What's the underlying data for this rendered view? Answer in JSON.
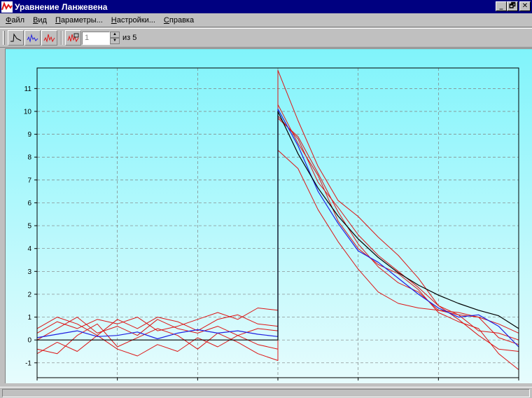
{
  "window": {
    "title": "Уравнение Ланжевена",
    "controls": {
      "minimize": "_",
      "restore": "🗗",
      "close": "✕"
    }
  },
  "menu": {
    "items": [
      {
        "label": "Файл",
        "accel": "Ф",
        "rest": "айл"
      },
      {
        "label": "Вид",
        "accel": "В",
        "rest": "ид"
      },
      {
        "label": "Параметры...",
        "accel": "П",
        "rest": "араметры..."
      },
      {
        "label": "Настройки...",
        "accel": "Н",
        "rest": "астройки..."
      },
      {
        "label": "Справка",
        "accel": "С",
        "rest": "правка"
      }
    ]
  },
  "toolbar": {
    "buttons": [
      {
        "name": "mean-curve",
        "icon": "black-curve-icon"
      },
      {
        "name": "averaged-trajectory",
        "icon": "blue-trajectory-icon"
      },
      {
        "name": "single-trajectory",
        "icon": "red-trajectory-icon"
      },
      {
        "name": "selected-trajectory",
        "icon": "red-trajectory-select-icon"
      }
    ],
    "trial_value": "1",
    "of_label": "из 5"
  },
  "colors": {
    "bg_top": "#80f4fb",
    "bg_bottom": "#e7fcfd",
    "mean": "#000000",
    "average": "#2020e0",
    "trajectory": "#dd1515",
    "grid": "#808080"
  },
  "chart_data": {
    "type": "line",
    "xlim": [
      -3,
      3
    ],
    "ylim": [
      -1.65,
      11.9
    ],
    "x_ticks": [
      -3,
      -2,
      -1,
      0,
      1,
      2,
      3
    ],
    "y_ticks": [
      -1,
      0,
      1,
      2,
      3,
      4,
      5,
      6,
      7,
      8,
      9,
      10,
      11
    ],
    "grid": true,
    "series": [
      {
        "role": "mean",
        "color": "#000000",
        "points": [
          [
            -3,
            0
          ],
          [
            0,
            0
          ],
          [
            0,
            10
          ],
          [
            0.25,
            8.15
          ],
          [
            0.5,
            6.65
          ],
          [
            0.75,
            5.42
          ],
          [
            1,
            4.42
          ],
          [
            1.25,
            3.61
          ],
          [
            1.5,
            2.94
          ],
          [
            1.75,
            2.4
          ],
          [
            2,
            1.96
          ],
          [
            2.25,
            1.6
          ],
          [
            2.5,
            1.3
          ],
          [
            2.75,
            1.06
          ],
          [
            3,
            0.5
          ]
        ]
      },
      {
        "role": "average",
        "color": "#2020e0",
        "points": [
          [
            -3,
            0.1
          ],
          [
            -2.75,
            0.25
          ],
          [
            -2.5,
            0.4
          ],
          [
            -2.25,
            0.15
          ],
          [
            -2,
            0.2
          ],
          [
            -1.75,
            0.35
          ],
          [
            -1.5,
            0.05
          ],
          [
            -1.25,
            0.3
          ],
          [
            -1,
            0.45
          ],
          [
            -0.75,
            0.3
          ],
          [
            -0.5,
            0.4
          ],
          [
            -0.25,
            0.25
          ],
          [
            0,
            0.15
          ],
          [
            0,
            10.1
          ],
          [
            0.25,
            8.5
          ],
          [
            0.5,
            6.5
          ],
          [
            0.75,
            5.1
          ],
          [
            1,
            3.9
          ],
          [
            1.25,
            3.4
          ],
          [
            1.5,
            2.7
          ],
          [
            1.75,
            2.0
          ],
          [
            2,
            1.4
          ],
          [
            2.25,
            1.0
          ],
          [
            2.5,
            1.1
          ],
          [
            2.75,
            0.6
          ],
          [
            3,
            -0.3
          ]
        ]
      },
      {
        "role": "trajectory",
        "color": "#dd1515",
        "points": [
          [
            -3,
            0.3
          ],
          [
            -2.75,
            0.8
          ],
          [
            -2.5,
            0.5
          ],
          [
            -2.25,
            0.9
          ],
          [
            -2,
            0.7
          ],
          [
            -1.75,
            1.0
          ],
          [
            -1.5,
            0.4
          ],
          [
            -1.25,
            0.6
          ],
          [
            -1,
            0.9
          ],
          [
            -0.75,
            1.2
          ],
          [
            -0.5,
            0.9
          ],
          [
            -0.25,
            1.4
          ],
          [
            0,
            1.3
          ],
          [
            0,
            11.8
          ],
          [
            0.25,
            9.6
          ],
          [
            0.5,
            7.6
          ],
          [
            0.75,
            6.1
          ],
          [
            1,
            5.4
          ],
          [
            1.25,
            4.5
          ],
          [
            1.5,
            3.7
          ],
          [
            1.75,
            2.7
          ],
          [
            2,
            1.5
          ],
          [
            2.25,
            1.1
          ],
          [
            2.5,
            1.0
          ],
          [
            2.75,
            0.7
          ],
          [
            3,
            0.3
          ]
        ]
      },
      {
        "role": "trajectory",
        "color": "#dd1515",
        "points": [
          [
            -3,
            -0.4
          ],
          [
            -2.75,
            -0.6
          ],
          [
            -2.5,
            0.2
          ],
          [
            -2.25,
            0.7
          ],
          [
            -2,
            -0.3
          ],
          [
            -1.75,
            0.1
          ],
          [
            -1.5,
            0.5
          ],
          [
            -1.25,
            0.2
          ],
          [
            -1,
            -0.4
          ],
          [
            -0.75,
            0.3
          ],
          [
            -0.5,
            -0.1
          ],
          [
            -0.25,
            -0.6
          ],
          [
            0,
            -0.9
          ],
          [
            0,
            10.3
          ],
          [
            0.25,
            8.6
          ],
          [
            0.5,
            7.2
          ],
          [
            0.75,
            5.2
          ],
          [
            1,
            4.0
          ],
          [
            1.25,
            3.3
          ],
          [
            1.5,
            2.9
          ],
          [
            1.75,
            2.2
          ],
          [
            2,
            1.2
          ],
          [
            2.25,
            0.8
          ],
          [
            2.5,
            0.5
          ],
          [
            2.75,
            -0.6
          ],
          [
            3,
            -1.3
          ]
        ]
      },
      {
        "role": "trajectory",
        "color": "#dd1515",
        "points": [
          [
            -3,
            0.0
          ],
          [
            -2.75,
            0.5
          ],
          [
            -2.5,
            1.0
          ],
          [
            -2.25,
            0.3
          ],
          [
            -2,
            0.6
          ],
          [
            -1.75,
            0.2
          ],
          [
            -1.5,
            0.9
          ],
          [
            -1.25,
            0.5
          ],
          [
            -1,
            0.3
          ],
          [
            -0.75,
            0.6
          ],
          [
            -0.5,
            0.2
          ],
          [
            -0.25,
            0.5
          ],
          [
            0,
            0.4
          ],
          [
            0,
            8.3
          ],
          [
            0.25,
            7.5
          ],
          [
            0.5,
            5.7
          ],
          [
            0.75,
            4.3
          ],
          [
            1,
            3.1
          ],
          [
            1.25,
            2.1
          ],
          [
            1.5,
            1.6
          ],
          [
            1.75,
            1.4
          ],
          [
            2,
            1.3
          ],
          [
            2.25,
            1.1
          ],
          [
            2.5,
            0.4
          ],
          [
            2.75,
            0.3
          ],
          [
            3,
            0.0
          ]
        ]
      },
      {
        "role": "trajectory",
        "color": "#dd1515",
        "points": [
          [
            -3,
            -0.6
          ],
          [
            -2.75,
            -0.1
          ],
          [
            -2.5,
            -0.5
          ],
          [
            -2.25,
            0.2
          ],
          [
            -2,
            -0.4
          ],
          [
            -1.75,
            -0.7
          ],
          [
            -1.5,
            -0.2
          ],
          [
            -1.25,
            -0.5
          ],
          [
            -1,
            0.1
          ],
          [
            -0.75,
            -0.3
          ],
          [
            -0.5,
            0.2
          ],
          [
            -0.25,
            -0.2
          ],
          [
            0,
            -0.4
          ],
          [
            0,
            9.8
          ],
          [
            0.25,
            8.8
          ],
          [
            0.5,
            6.9
          ],
          [
            0.75,
            5.8
          ],
          [
            1,
            4.6
          ],
          [
            1.25,
            3.7
          ],
          [
            1.5,
            3.0
          ],
          [
            1.75,
            2.3
          ],
          [
            2,
            1.5
          ],
          [
            2.25,
            0.9
          ],
          [
            2.5,
            0.2
          ],
          [
            2.75,
            -0.4
          ],
          [
            3,
            -0.5
          ]
        ]
      },
      {
        "role": "trajectory",
        "color": "#dd1515",
        "points": [
          [
            -3,
            0.5
          ],
          [
            -2.75,
            1.0
          ],
          [
            -2.5,
            0.7
          ],
          [
            -2.25,
            0.2
          ],
          [
            -2,
            0.9
          ],
          [
            -1.75,
            0.5
          ],
          [
            -1.5,
            1.0
          ],
          [
            -1.25,
            0.8
          ],
          [
            -1,
            0.4
          ],
          [
            -0.75,
            0.9
          ],
          [
            -0.5,
            1.1
          ],
          [
            -0.25,
            0.7
          ],
          [
            0,
            0.6
          ],
          [
            0,
            9.7
          ],
          [
            0.25,
            8.9
          ],
          [
            0.5,
            7.3
          ],
          [
            0.75,
            5.6
          ],
          [
            1,
            4.2
          ],
          [
            1.25,
            3.2
          ],
          [
            1.5,
            2.5
          ],
          [
            1.75,
            2.1
          ],
          [
            2,
            1.3
          ],
          [
            2.25,
            1.2
          ],
          [
            2.5,
            1.0
          ],
          [
            2.75,
            0.1
          ],
          [
            3,
            -0.2
          ]
        ]
      }
    ]
  }
}
